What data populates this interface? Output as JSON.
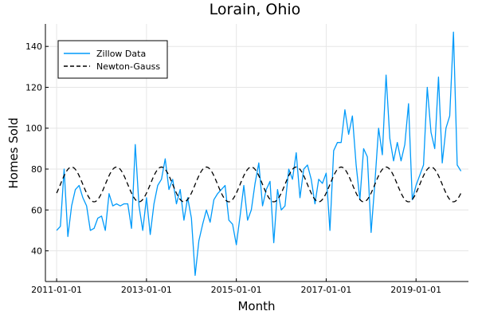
{
  "chart_data": {
    "type": "line",
    "title": "Lorain, Ohio",
    "xlabel": "Month",
    "ylabel": "Homes Sold",
    "x_tick_labels": [
      "2011-01-01",
      "2013-01-01",
      "2015-01-01",
      "2017-01-01",
      "2019-01-01"
    ],
    "y_ticks": [
      40,
      60,
      80,
      100,
      120,
      140
    ],
    "xlim": [
      "2010-10-01",
      "2020-03-01"
    ],
    "ylim": [
      25,
      151
    ],
    "grid": true,
    "legend_position": "top-left",
    "start_month": "2011-01-01",
    "series": [
      {
        "name": "Zillow Data",
        "color": "#009AFA",
        "style": "solid",
        "values": [
          50,
          52,
          80,
          47,
          62,
          70,
          72,
          66,
          62,
          50,
          51,
          56,
          57,
          50,
          68,
          62,
          63,
          62,
          63,
          63,
          51,
          92,
          62,
          50,
          66,
          48,
          63,
          72,
          75,
          85,
          70,
          75,
          63,
          70,
          55,
          66,
          56,
          28,
          45,
          53,
          60,
          54,
          65,
          68,
          70,
          72,
          55,
          53,
          43,
          57,
          72,
          55,
          60,
          73,
          83,
          62,
          70,
          74,
          44,
          70,
          60,
          62,
          80,
          75,
          88,
          66,
          80,
          82,
          75,
          63,
          75,
          73,
          78,
          50,
          89,
          93,
          93,
          109,
          97,
          106,
          82,
          65,
          90,
          86,
          49,
          73,
          100,
          87,
          126,
          95,
          84,
          93,
          84,
          92,
          112,
          65,
          72,
          77,
          82,
          120,
          98,
          90,
          125,
          83,
          100,
          106,
          147,
          82,
          79
        ]
      },
      {
        "name": "Newton-Gauss",
        "color": "#000000",
        "style": "dashed",
        "mean": 72.5,
        "amplitude": 8.5,
        "period_months": 12,
        "peak_month_offset": 4
      }
    ]
  }
}
